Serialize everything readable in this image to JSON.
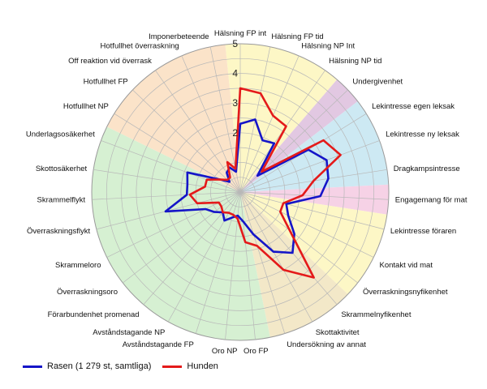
{
  "chart_data": {
    "type": "radar",
    "title": "",
    "rmin": 0,
    "rmax": 5,
    "rings": [
      0.5,
      1,
      1.5,
      2,
      2.5,
      3,
      3.5,
      4,
      4.5,
      5
    ],
    "tick_values": [
      2,
      3,
      4,
      5
    ],
    "tick_labels": [
      "2",
      "3",
      "4",
      "5"
    ],
    "categories": [
      "Hälsning FP int",
      "Hälsning FP tid",
      "Hälsning NP Int",
      "Hälsning NP tid",
      "Undergivenhet",
      "Lekintresse egen leksak",
      "Lekintresse ny leksak",
      "Dragkampsintresse",
      "Engagemang för mat",
      "Lekintresse föraren",
      "Kontakt vid mat",
      "Överraskningsnyfikenhet",
      "Skrammelnyfikenhet",
      "Skottaktivitet",
      "Undersökning av annat",
      "Oro FP",
      "Oro NP",
      "Avståndstagande FP",
      "Avståndstagande NP",
      "Förarbundenhet promenad",
      "Överraskningsoro",
      "Skrammeloro",
      "Överraskningsflykt",
      "Skrammelflykt",
      "Skottosäkerhet",
      "Underlagsosäkerhet",
      "Hotfullhet NP",
      "Hotfullhet FP",
      "Off reaktion vid överrask",
      "Hotfullhet överraskning",
      "Imponerbeteende"
    ],
    "sectors": [
      {
        "from": 0,
        "to": 3,
        "color": "#fdf7c6"
      },
      {
        "from": 4,
        "to": 4,
        "color": "#e2c8e2"
      },
      {
        "from": 5,
        "to": 7,
        "color": "#cde9f3"
      },
      {
        "from": 8,
        "to": 8,
        "color": "#f6d2e6"
      },
      {
        "from": 9,
        "to": 11,
        "color": "#fdf7c6"
      },
      {
        "from": 12,
        "to": 14,
        "color": "#f3e8c8"
      },
      {
        "from": 15,
        "to": 25,
        "color": "#d6f0d2"
      },
      {
        "from": 26,
        "to": 30,
        "color": "#fbe3c9"
      }
    ],
    "series": [
      {
        "name": "Rasen (1 279 st, samtliga)",
        "color": "#1515c8",
        "values": [
          2.3,
          2.5,
          1.9,
          2.0,
          0.8,
          2.7,
          3.1,
          3.0,
          2.7,
          1.6,
          1.8,
          2.3,
          2.7,
          2.3,
          1.5,
          1.0,
          0.8,
          0.9,
          1.1,
          0.9,
          1.1,
          1.3,
          2.6,
          1.8,
          1.8,
          1.9,
          0.8,
          0.5,
          0.8,
          0.9,
          0.7
        ]
      },
      {
        "name": "Hunden",
        "color": "#e41a1a",
        "values": [
          3.5,
          3.4,
          2.8,
          2.7,
          1.0,
          3.3,
          3.6,
          2.5,
          2.1,
          1.5,
          1.5,
          2.1,
          3.8,
          3.0,
          1.9,
          1.7,
          0.9,
          0.8,
          0.8,
          0.9,
          0.8,
          0.8,
          1.5,
          1.7,
          1.2,
          1.2,
          0.8,
          0.6,
          0.6,
          1.1,
          0.8
        ]
      }
    ],
    "legend": {
      "position": "bottom-left"
    }
  }
}
